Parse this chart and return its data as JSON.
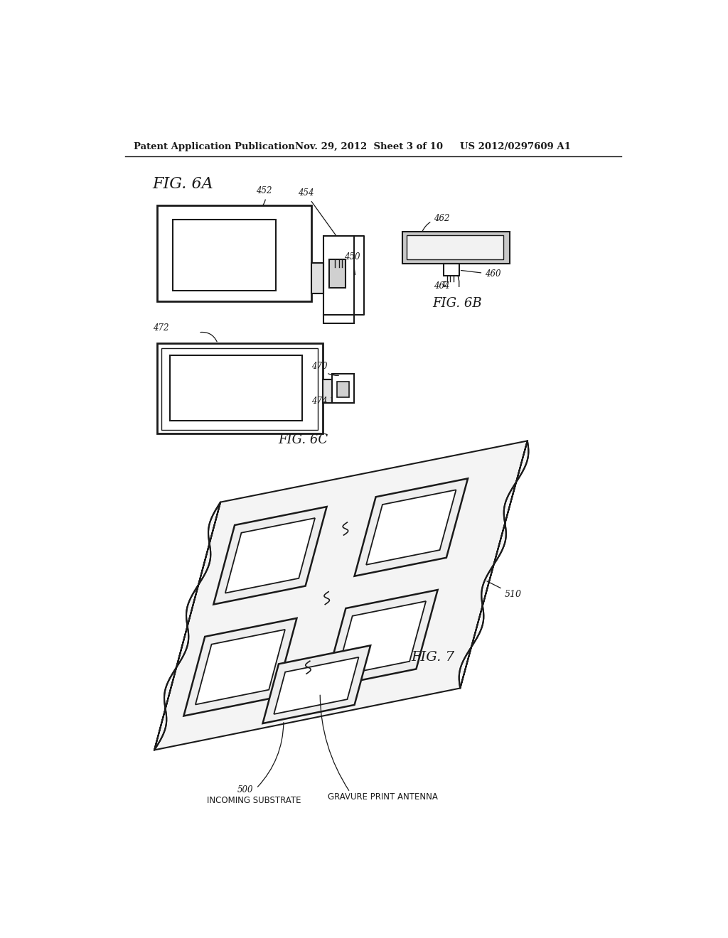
{
  "bg_color": "#ffffff",
  "header_text1": "Patent Application Publication",
  "header_text2": "Nov. 29, 2012  Sheet 3 of 10",
  "header_text3": "US 2012/0297609 A1",
  "fig6a_label": "FIG. 6A",
  "fig6b_label": "FIG. 6B",
  "fig6c_label": "FIG. 6C",
  "fig7_label": "FIG. 7",
  "line_color": "#1a1a1a",
  "text_color": "#1a1a1a",
  "note_color": "#333333"
}
